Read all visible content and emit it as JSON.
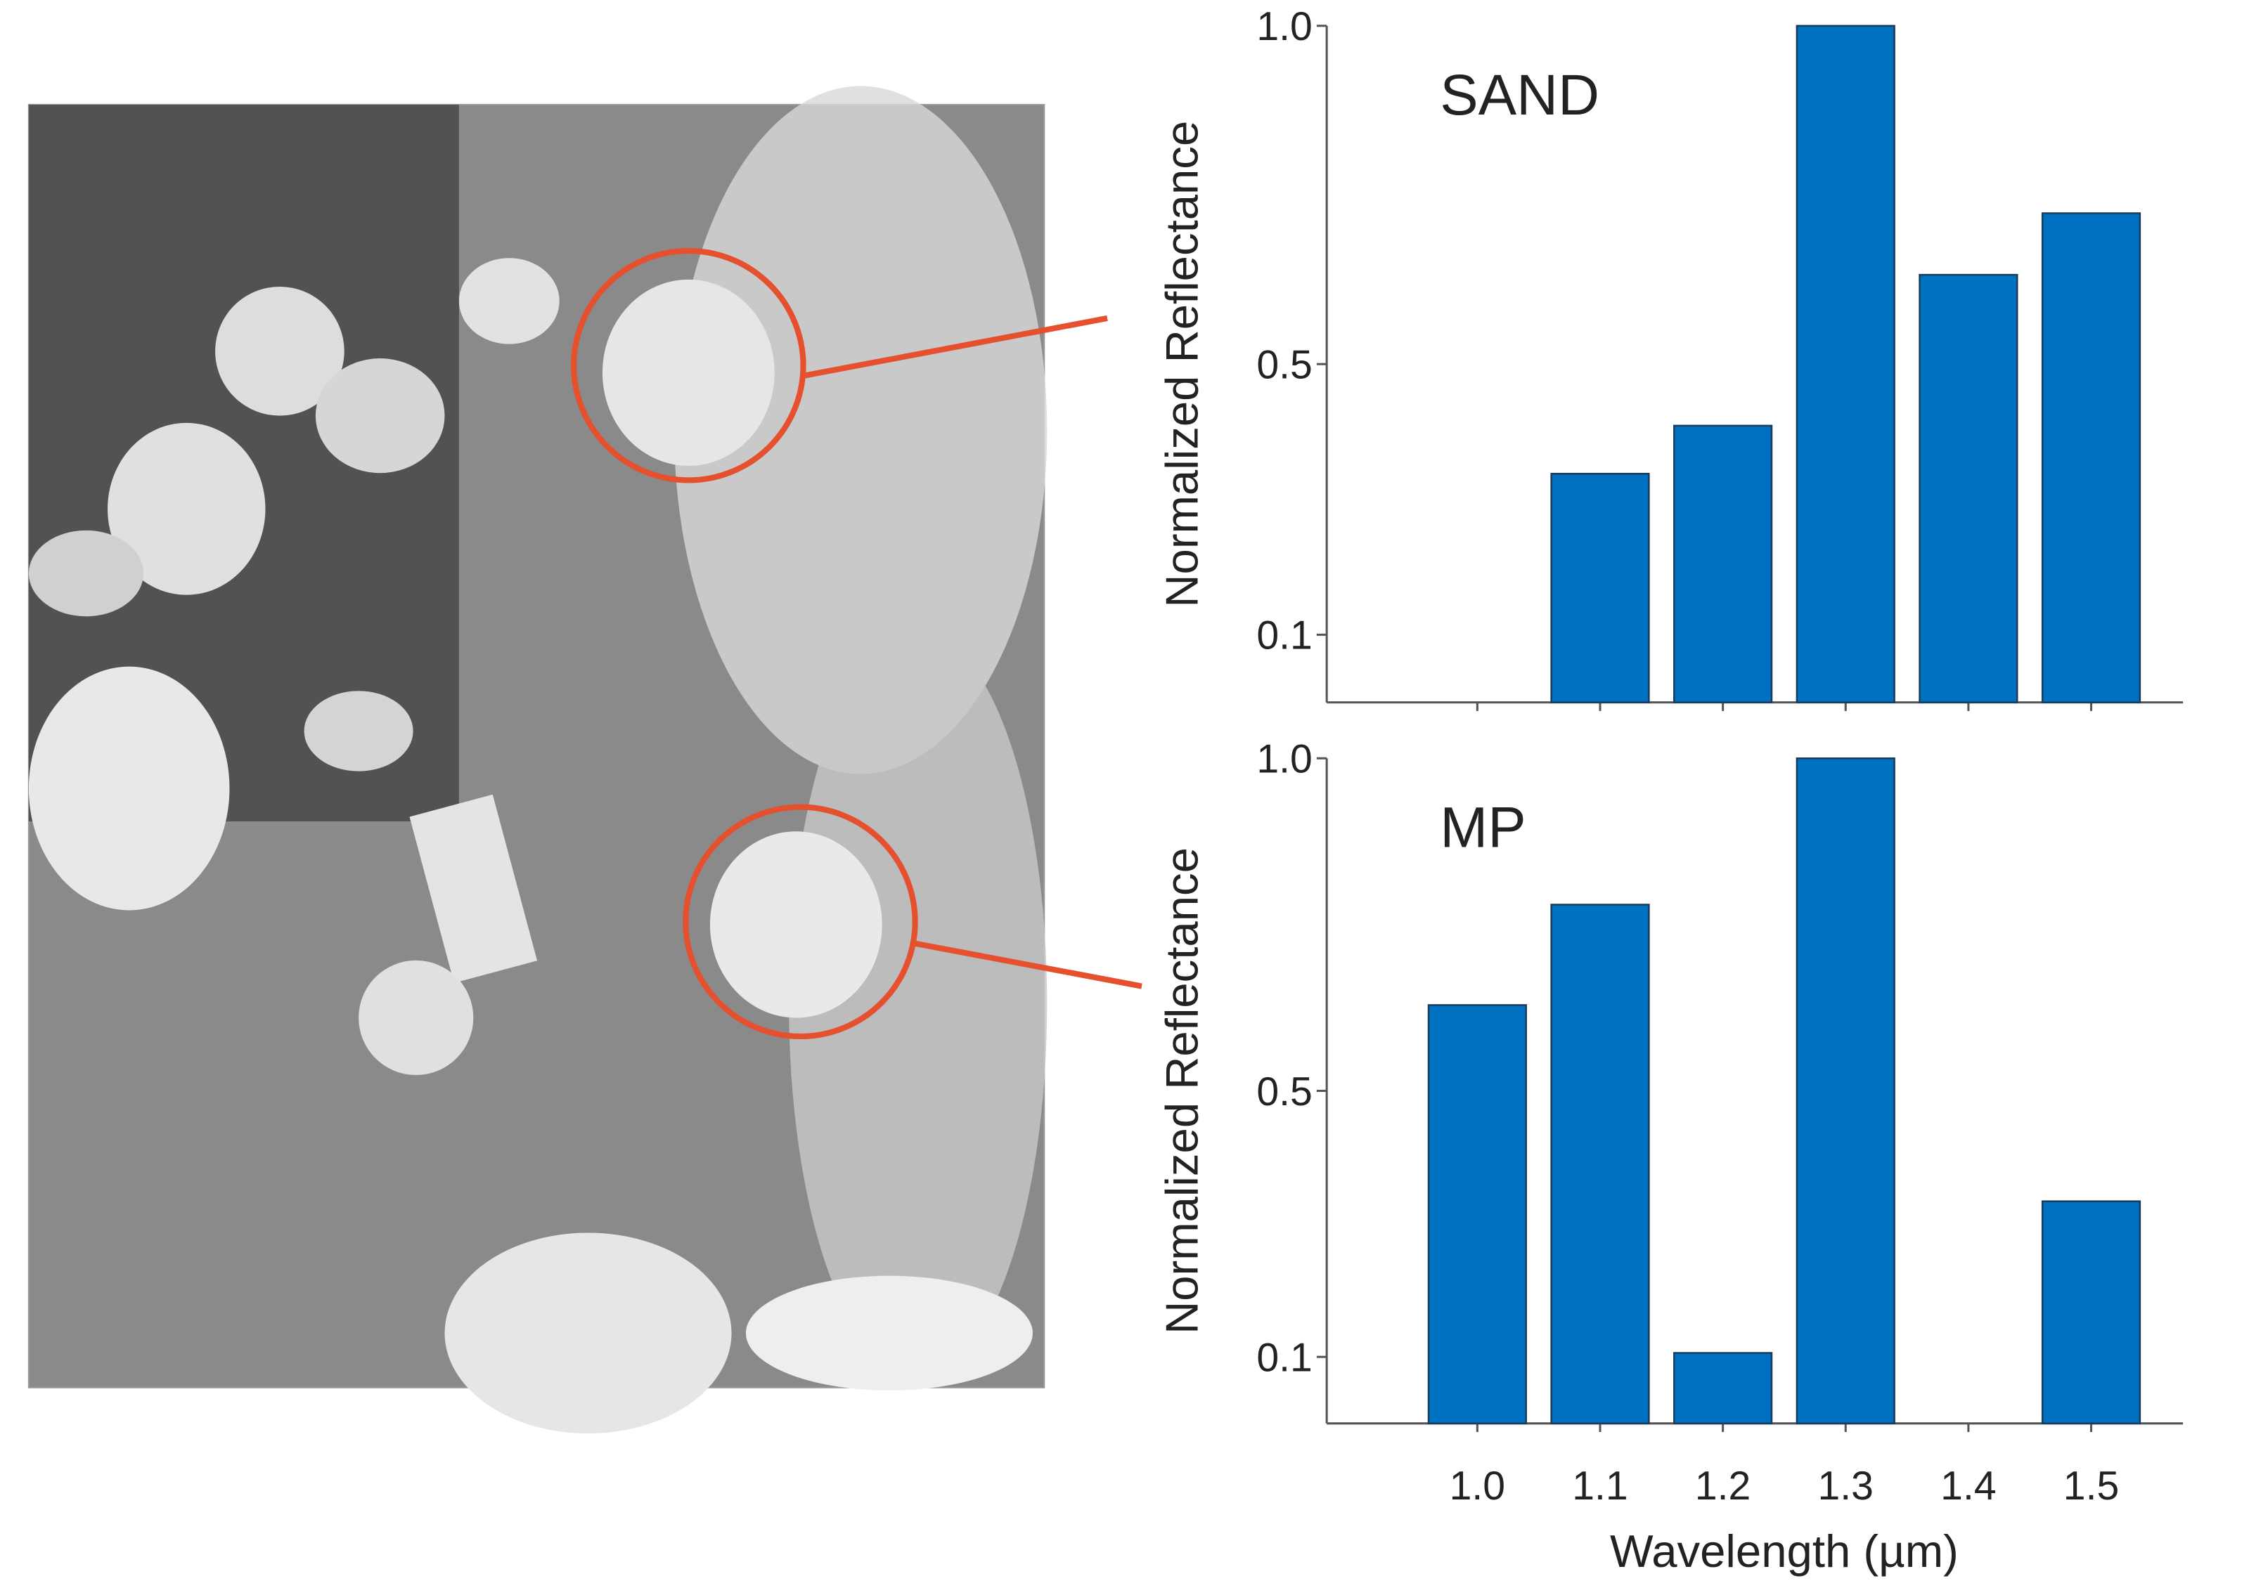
{
  "chart_data": [
    {
      "type": "bar",
      "annotation": "SAND",
      "y_label": "Normalized Reflectance",
      "values": [
        0,
        0.338,
        0.409,
        1.0,
        0.632,
        0.723
      ],
      "color": "#0070c0",
      "ylim": [
        0,
        1
      ],
      "yticks": [
        0.1,
        0.5,
        {
          "value": 1,
          "label": "1.0"
        }
      ]
    },
    {
      "type": "bar",
      "annotation": "MP",
      "y_label": "Normalized Reflectance",
      "x_label": "Wavelength (µm)",
      "categories": [
        "1.0",
        "1.1",
        "1.2",
        "1.3",
        "1.4",
        "1.5"
      ],
      "values": [
        0.629,
        0.78,
        0.106,
        1.0,
        0,
        0.334
      ],
      "color": "#0070c0",
      "ylim": [
        0,
        1
      ],
      "yticks": [
        0.1,
        0.5,
        {
          "value": 1,
          "label": "1.0"
        }
      ]
    }
  ]
}
